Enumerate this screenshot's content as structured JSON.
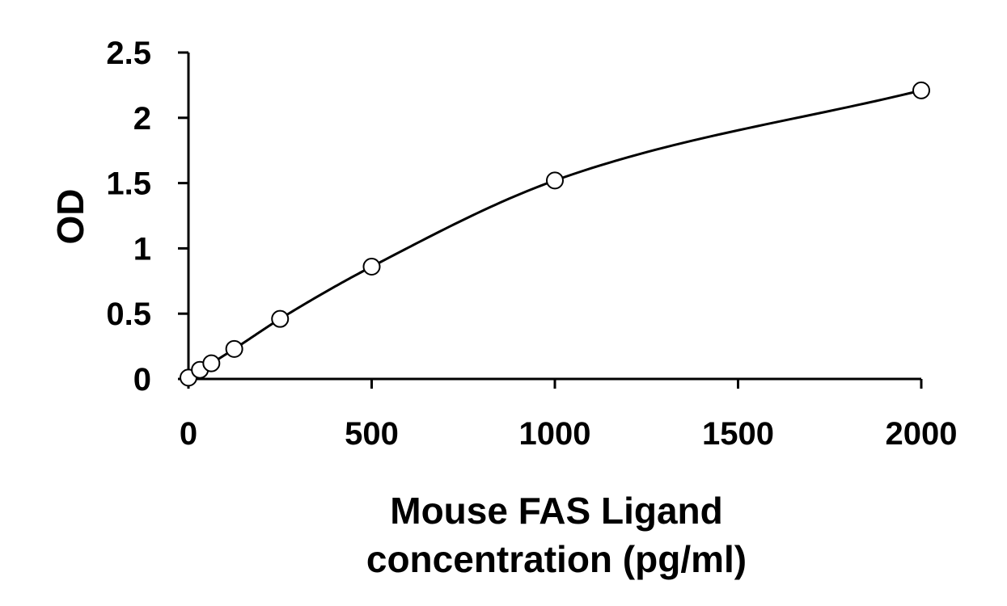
{
  "chart_data": {
    "type": "scatter",
    "xlabel_lines": [
      "Mouse FAS Ligand",
      "concentration (pg/ml)"
    ],
    "ylabel": "OD",
    "xlim": [
      0,
      2000
    ],
    "ylim": [
      0,
      2.5
    ],
    "x_ticks": [
      {
        "value": 0,
        "label": "0"
      },
      {
        "value": 500,
        "label": "500"
      },
      {
        "value": 1000,
        "label": "1000"
      },
      {
        "value": 1500,
        "label": "1500"
      },
      {
        "value": 2000,
        "label": "2000"
      }
    ],
    "y_ticks": [
      {
        "value": 0,
        "label": "0"
      },
      {
        "value": 0.5,
        "label": "0.5"
      },
      {
        "value": 1,
        "label": "1"
      },
      {
        "value": 1.5,
        "label": "1.5"
      },
      {
        "value": 2,
        "label": "2"
      },
      {
        "value": 2.5,
        "label": "2.5"
      }
    ],
    "grid": false,
    "legend": "none",
    "series": [
      {
        "marker": "open-circle",
        "trendline": "smooth-fit",
        "points": [
          {
            "x": 0,
            "y": 0.01
          },
          {
            "x": 31.25,
            "y": 0.07
          },
          {
            "x": 62.5,
            "y": 0.12
          },
          {
            "x": 125,
            "y": 0.23
          },
          {
            "x": 250,
            "y": 0.46
          },
          {
            "x": 500,
            "y": 0.86
          },
          {
            "x": 1000,
            "y": 1.52
          },
          {
            "x": 2000,
            "y": 2.21
          }
        ]
      }
    ],
    "colors": {
      "line": "#000000",
      "marker_fill": "#ffffff",
      "background": "#ffffff"
    }
  }
}
